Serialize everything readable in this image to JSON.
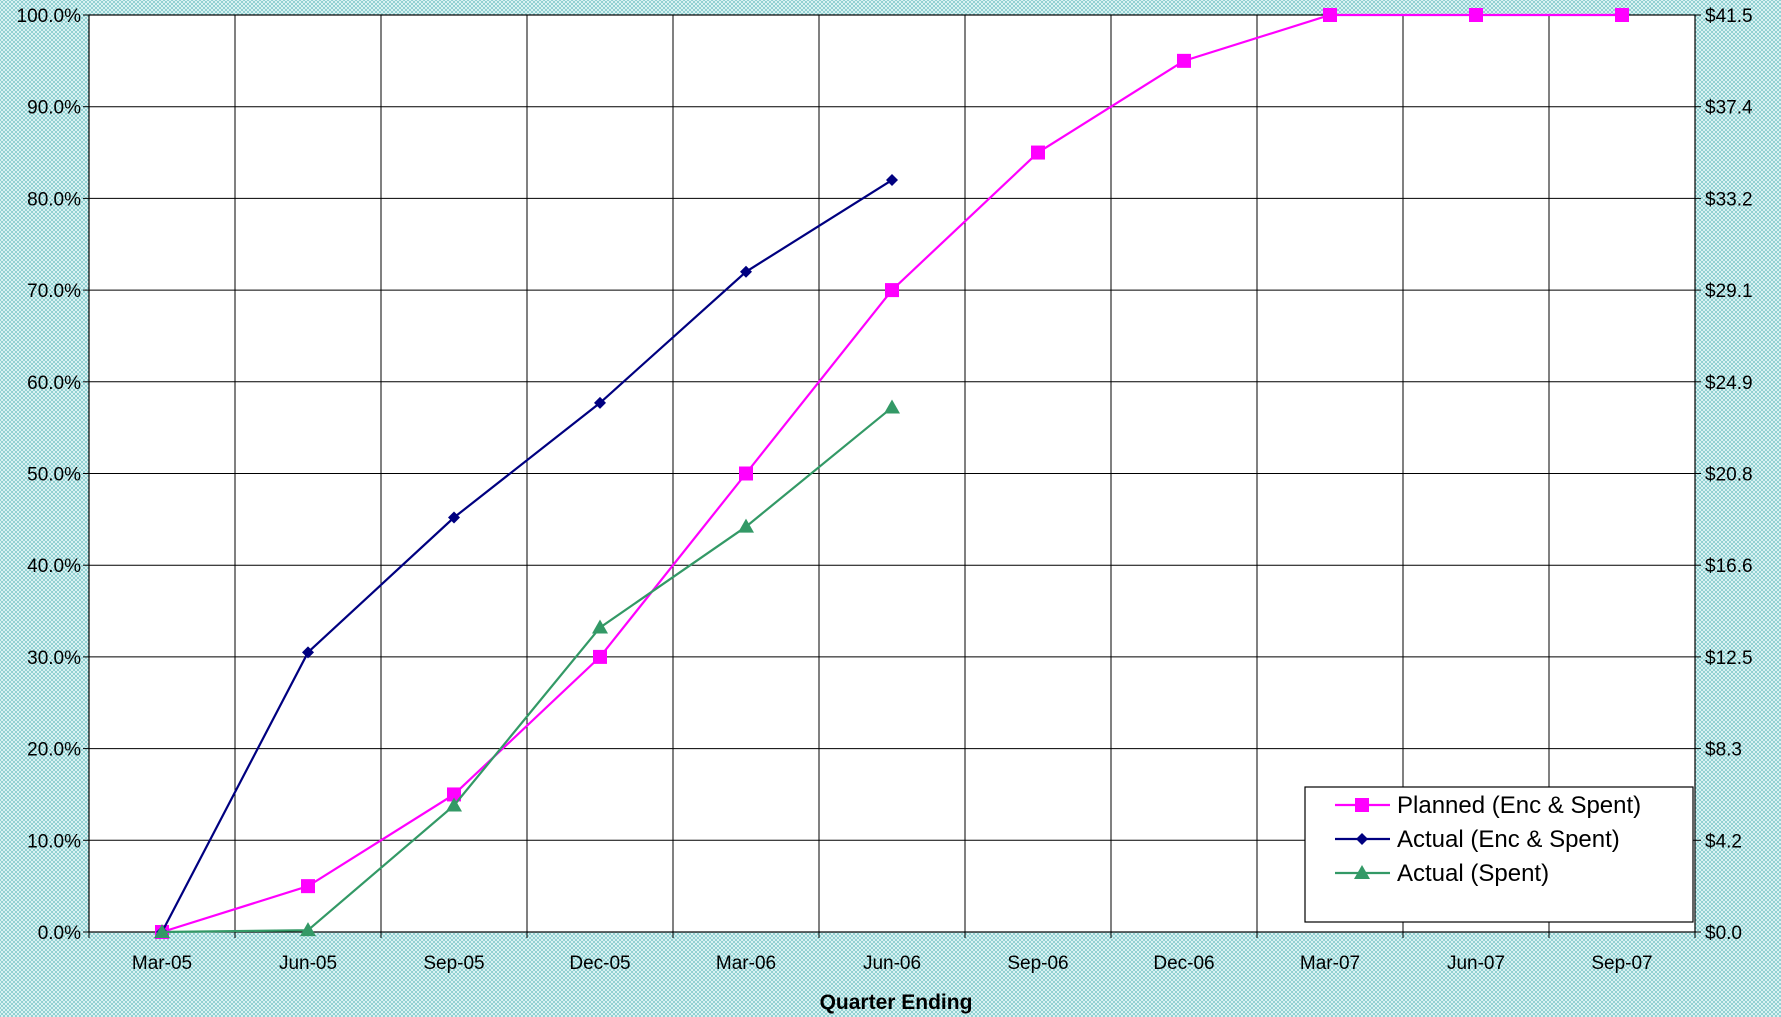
{
  "chart_data": {
    "type": "line",
    "title": "",
    "xlabel": "Quarter Ending",
    "ylabel": "",
    "y2label": "",
    "categories": [
      "Mar-05",
      "Jun-05",
      "Sep-05",
      "Dec-05",
      "Mar-06",
      "Jun-06",
      "Sep-06",
      "Dec-06",
      "Mar-07",
      "Jun-07",
      "Sep-07"
    ],
    "ylim": [
      0,
      100
    ],
    "yticks": [
      "0.0%",
      "10.0%",
      "20.0%",
      "30.0%",
      "40.0%",
      "50.0%",
      "60.0%",
      "70.0%",
      "80.0%",
      "90.0%",
      "100.0%"
    ],
    "y2lim": [
      0,
      41.5
    ],
    "y2ticks": [
      "$0.0",
      "$4.2",
      "$8.3",
      "$12.5",
      "$16.6",
      "$20.8",
      "$24.9",
      "$29.1",
      "$33.2",
      "$37.4",
      "$41.5"
    ],
    "grid": true,
    "legend_position": "bottom-right",
    "series": [
      {
        "name": "Planned (Enc & Spent)",
        "color": "#ff00ff",
        "marker": "square",
        "values": [
          0,
          5,
          15,
          30,
          50,
          70,
          85,
          95,
          100,
          100,
          100
        ]
      },
      {
        "name": "Actual (Enc & Spent)",
        "color": "#000080",
        "marker": "diamond",
        "values": [
          0,
          30.5,
          45.2,
          57.7,
          72,
          82,
          null,
          null,
          null,
          null,
          null
        ]
      },
      {
        "name": "Actual (Spent)",
        "color": "#339966",
        "marker": "triangle",
        "values": [
          0,
          0.2,
          13.8,
          33.2,
          44.2,
          57.2,
          null,
          null,
          null,
          null,
          null
        ]
      }
    ]
  }
}
